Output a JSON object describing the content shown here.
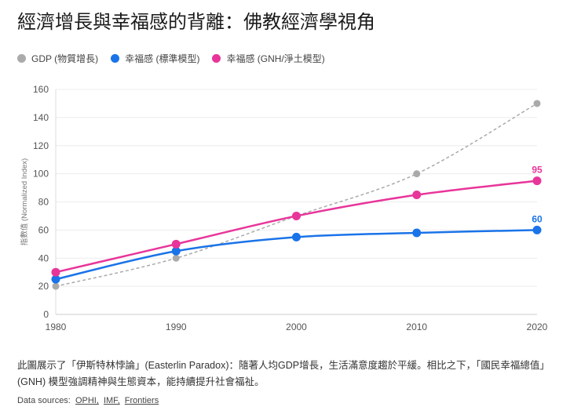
{
  "title": "經濟增長與幸福感的背離：佛教經濟學視角",
  "colors": {
    "gdp": "#aaaaaa",
    "standard": "#1a73e8",
    "gnh": "#e8359a"
  },
  "chart_data": {
    "type": "line",
    "title": "經濟增長與幸福感的背離：佛教經濟學視角",
    "xlabel": "",
    "ylabel": "指數值 (Normalized Index)",
    "x": [
      1980,
      1990,
      2000,
      2010,
      2020
    ],
    "xticks": [
      "1980",
      "1990",
      "2000",
      "2010",
      "2020"
    ],
    "ylim": [
      0,
      160
    ],
    "yticks": [
      "0",
      "20",
      "40",
      "60",
      "80",
      "100",
      "120",
      "140",
      "160"
    ],
    "grid": "horizontal",
    "legend": "top-left",
    "series": [
      {
        "name": "GDP (物質增長)",
        "values": [
          20,
          40,
          70,
          100,
          150
        ],
        "color": "#aaaaaa",
        "style": "dashed"
      },
      {
        "name": "幸福感 (標準模型)",
        "values": [
          25,
          45,
          55,
          58,
          60
        ],
        "color": "#1a73e8",
        "style": "solid",
        "end_label": "60"
      },
      {
        "name": "幸福感 (GNH/淨土模型)",
        "values": [
          30,
          50,
          70,
          85,
          95
        ],
        "color": "#e8359a",
        "style": "solid",
        "end_label": "95"
      }
    ]
  },
  "description": "此圖展示了「伊斯特林悖論」(Easterlin Paradox)：隨著人均GDP增長，生活滿意度趨於平緩。相比之下，「國民幸福總值」(GNH) 模型強調精神與生態資本，能持續提升社會福祉。",
  "sources": {
    "label": "Data sources:",
    "links": [
      "OPHI,",
      "IMF,",
      "Frontiers"
    ]
  }
}
